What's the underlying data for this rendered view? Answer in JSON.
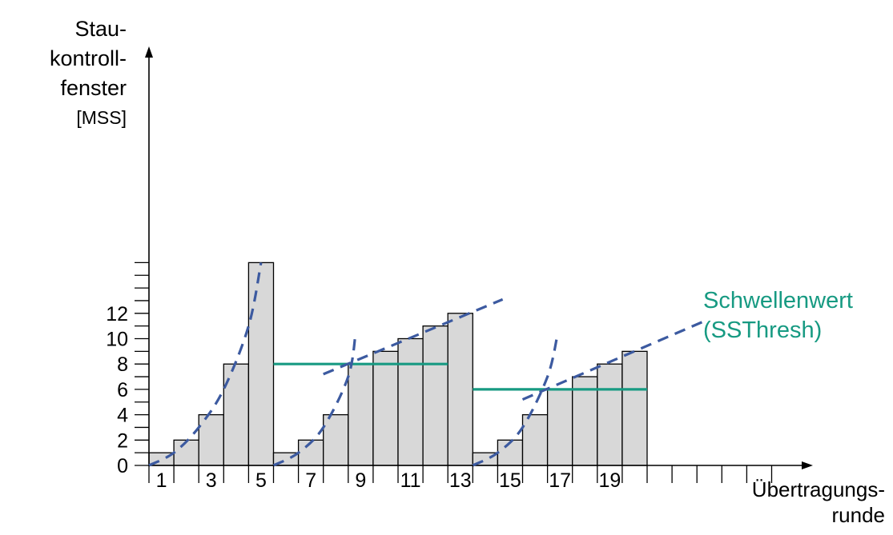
{
  "chart_data": {
    "type": "bar",
    "ylabel_lines": [
      "Stau-",
      "kontroll-",
      "fenster",
      "[MSS]"
    ],
    "xlabel_lines": [
      "Übertragungs-",
      "runde"
    ],
    "yticks": [
      "0",
      "2",
      "4",
      "6",
      "8",
      "10",
      "12"
    ],
    "xticks": [
      "1",
      "3",
      "5",
      "7",
      "9",
      "11",
      "13",
      "15",
      "17",
      "19"
    ],
    "ylim": [
      0,
      16
    ],
    "xlim": [
      1,
      26
    ],
    "rounds": [
      1,
      2,
      3,
      4,
      5,
      6,
      7,
      8,
      9,
      10,
      11,
      12,
      13,
      14,
      15,
      16,
      17,
      18,
      19,
      20
    ],
    "values": [
      1,
      2,
      4,
      8,
      16,
      1,
      2,
      4,
      8,
      9,
      10,
      11,
      12,
      1,
      2,
      4,
      6,
      7,
      8,
      9
    ],
    "threshold": {
      "label_lines": [
        "Schwellenwert",
        "(SSThresh)"
      ],
      "segments": [
        {
          "from_round": 6,
          "to_round": 13,
          "value": 8
        },
        {
          "from_round": 14,
          "to_round": 21,
          "value": 6
        }
      ]
    },
    "trend_curves": [
      {
        "kind": "exponential",
        "x": [
          1,
          2,
          3,
          4,
          5,
          5.5
        ],
        "y": [
          0,
          1,
          3,
          6,
          11,
          16
        ]
      },
      {
        "kind": "exponential",
        "x": [
          6,
          7,
          8,
          9,
          9.3
        ],
        "y": [
          0,
          1,
          3,
          7,
          10.5
        ]
      },
      {
        "kind": "linear",
        "x": [
          8,
          15.2
        ],
        "y": [
          7.2,
          13.1
        ]
      },
      {
        "kind": "exponential",
        "x": [
          14,
          15,
          16,
          17,
          17.4
        ],
        "y": [
          0,
          1,
          3,
          7,
          10.3
        ]
      },
      {
        "kind": "linear",
        "x": [
          16,
          23.2
        ],
        "y": [
          5.2,
          11.3
        ]
      }
    ],
    "colors": {
      "bar_fill": "#d8d8d8",
      "bar_stroke": "#000000",
      "threshold": "#179a82",
      "trend": "#3c5aa0",
      "axis": "#000000"
    },
    "grid": false
  }
}
